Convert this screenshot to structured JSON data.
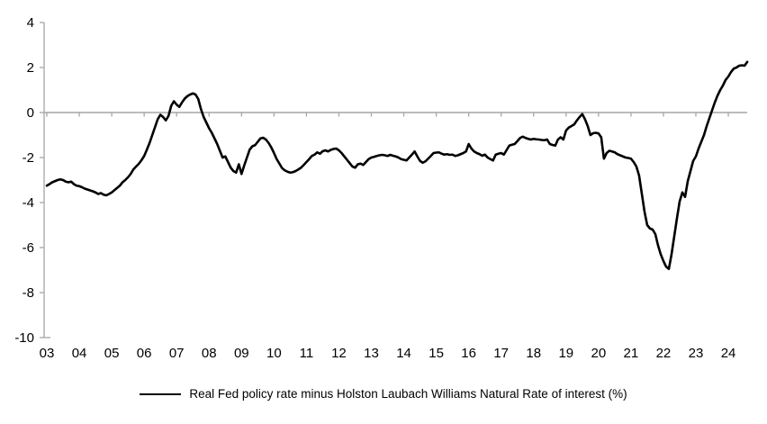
{
  "chart_data": {
    "type": "line",
    "title": "",
    "xlabel": "",
    "ylabel": "",
    "ylim": [
      -10,
      4
    ],
    "y_ticks": [
      4,
      2,
      0,
      -2,
      -4,
      -6,
      -8,
      -10
    ],
    "y_tick_labels": [
      "4",
      "2",
      "0",
      "-2",
      "-4",
      "-6",
      "-8",
      "-10"
    ],
    "x_tick_labels": [
      "03",
      "04",
      "05",
      "06",
      "07",
      "08",
      "09",
      "10",
      "11",
      "12",
      "13",
      "14",
      "15",
      "16",
      "17",
      "18",
      "19",
      "20",
      "21",
      "22",
      "23",
      "24"
    ],
    "x_start": "2003-01",
    "x_frequency": "monthly",
    "grid": false,
    "legend_position": "bottom",
    "zero_line": true,
    "axis_color": "#A6A6A6",
    "line_color": "#000000",
    "series": [
      {
        "name": "Real Fed policy rate minus Holston Laubach Williams Natural Rate of interest (%)",
        "color": "#000000",
        "values": [
          -3.25,
          -3.18,
          -3.1,
          -3.05,
          -3.0,
          -2.97,
          -3.0,
          -3.07,
          -3.1,
          -3.07,
          -3.18,
          -3.25,
          -3.27,
          -3.32,
          -3.38,
          -3.42,
          -3.46,
          -3.5,
          -3.55,
          -3.62,
          -3.58,
          -3.65,
          -3.68,
          -3.62,
          -3.55,
          -3.45,
          -3.35,
          -3.25,
          -3.1,
          -3.0,
          -2.88,
          -2.73,
          -2.53,
          -2.4,
          -2.28,
          -2.12,
          -1.93,
          -1.65,
          -1.35,
          -1.0,
          -0.65,
          -0.3,
          -0.1,
          -0.2,
          -0.35,
          -0.15,
          0.3,
          0.5,
          0.35,
          0.25,
          0.45,
          0.62,
          0.73,
          0.8,
          0.85,
          0.8,
          0.6,
          0.15,
          -0.2,
          -0.45,
          -0.7,
          -0.9,
          -1.15,
          -1.4,
          -1.7,
          -2.0,
          -1.95,
          -2.2,
          -2.45,
          -2.6,
          -2.67,
          -2.3,
          -2.73,
          -2.35,
          -2.0,
          -1.65,
          -1.5,
          -1.45,
          -1.3,
          -1.15,
          -1.12,
          -1.2,
          -1.35,
          -1.55,
          -1.8,
          -2.07,
          -2.27,
          -2.47,
          -2.57,
          -2.63,
          -2.67,
          -2.65,
          -2.6,
          -2.53,
          -2.45,
          -2.33,
          -2.2,
          -2.07,
          -1.93,
          -1.87,
          -1.77,
          -1.83,
          -1.72,
          -1.68,
          -1.73,
          -1.66,
          -1.62,
          -1.6,
          -1.68,
          -1.8,
          -1.95,
          -2.1,
          -2.25,
          -2.4,
          -2.45,
          -2.3,
          -2.27,
          -2.33,
          -2.2,
          -2.07,
          -2.0,
          -1.97,
          -1.93,
          -1.9,
          -1.88,
          -1.9,
          -1.93,
          -1.88,
          -1.92,
          -1.95,
          -2.0,
          -2.07,
          -2.1,
          -2.13,
          -2.0,
          -1.87,
          -1.73,
          -1.95,
          -2.15,
          -2.23,
          -2.17,
          -2.05,
          -1.93,
          -1.8,
          -1.78,
          -1.77,
          -1.83,
          -1.87,
          -1.85,
          -1.88,
          -1.87,
          -1.93,
          -1.9,
          -1.85,
          -1.8,
          -1.73,
          -1.4,
          -1.6,
          -1.73,
          -1.8,
          -1.85,
          -1.92,
          -1.87,
          -2.0,
          -2.07,
          -2.13,
          -1.87,
          -1.83,
          -1.8,
          -1.87,
          -1.67,
          -1.47,
          -1.43,
          -1.4,
          -1.27,
          -1.13,
          -1.07,
          -1.13,
          -1.17,
          -1.2,
          -1.17,
          -1.19,
          -1.2,
          -1.22,
          -1.23,
          -1.2,
          -1.4,
          -1.44,
          -1.47,
          -1.2,
          -1.1,
          -1.2,
          -0.8,
          -0.67,
          -0.6,
          -0.53,
          -0.35,
          -0.2,
          -0.07,
          -0.3,
          -0.6,
          -1.0,
          -0.92,
          -0.9,
          -0.93,
          -1.1,
          -2.05,
          -1.8,
          -1.7,
          -1.73,
          -1.77,
          -1.85,
          -1.9,
          -1.95,
          -2.0,
          -2.02,
          -2.05,
          -2.2,
          -2.4,
          -2.8,
          -3.6,
          -4.4,
          -5.0,
          -5.15,
          -5.2,
          -5.4,
          -5.9,
          -6.3,
          -6.6,
          -6.85,
          -6.95,
          -6.3,
          -5.5,
          -4.7,
          -3.95,
          -3.55,
          -3.75,
          -3.05,
          -2.6,
          -2.15,
          -1.95,
          -1.6,
          -1.3,
          -1.0,
          -0.6,
          -0.25,
          0.1,
          0.45,
          0.75,
          1.0,
          1.2,
          1.45,
          1.6,
          1.8,
          1.95,
          2.0,
          2.08,
          2.1,
          2.08,
          2.25
        ]
      }
    ]
  }
}
